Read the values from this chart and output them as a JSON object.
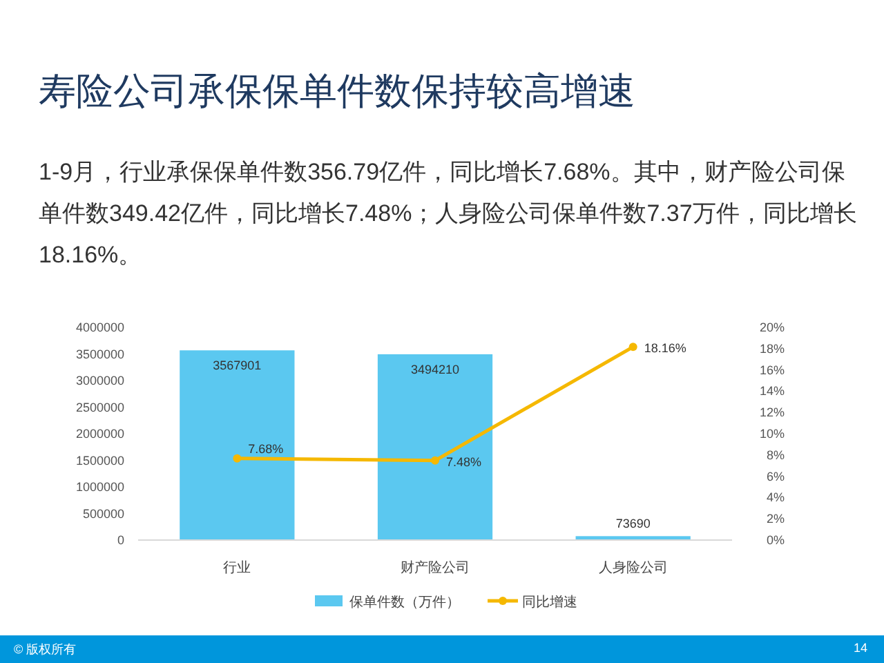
{
  "chart_data": {
    "type": "bar",
    "title": "寿险公司承保保单件数保持较高增速",
    "subtitle": "1-9月，行业承保保单件数356.79亿件，同比增长7.68%。其中，财产险公司保单件数349.42亿件，同比增长7.48%；人身险公司保单件数7.37万件，同比增长18.16%。",
    "categories": [
      "行业",
      "财产险公司",
      "人身险公司"
    ],
    "series": [
      {
        "name": "保单件数（万件）",
        "color": "#5bc8f0",
        "values": [
          3567901,
          3494210,
          73690
        ],
        "data_labels": true
      },
      {
        "name": "同比增速",
        "type": "line",
        "axis": "y2",
        "color": "#f5b800",
        "marker": "circle",
        "values": [
          7.68,
          7.48,
          18.16
        ],
        "value_labels": [
          "7.68%",
          "7.48%",
          "18.16%"
        ]
      }
    ],
    "ylim": [
      0,
      4000000
    ],
    "yticks": [
      0,
      500000,
      1000000,
      1500000,
      2000000,
      2500000,
      3000000,
      3500000,
      4000000
    ],
    "y2lim": [
      0,
      20
    ],
    "y2ticks": [
      {
        "value": 0,
        "label": "0%"
      },
      {
        "value": 2,
        "label": "2%"
      },
      {
        "value": 4,
        "label": "4%"
      },
      {
        "value": 6,
        "label": "6%"
      },
      {
        "value": 8,
        "label": "8%"
      },
      {
        "value": 10,
        "label": "10%"
      },
      {
        "value": 12,
        "label": "12%"
      },
      {
        "value": 14,
        "label": "14%"
      },
      {
        "value": 16,
        "label": "16%"
      },
      {
        "value": 18,
        "label": "18%"
      },
      {
        "value": 20,
        "label": "20%"
      }
    ],
    "grid": false,
    "legend": "bottom",
    "annotations": [
      "© 版权所有",
      "14"
    ]
  }
}
